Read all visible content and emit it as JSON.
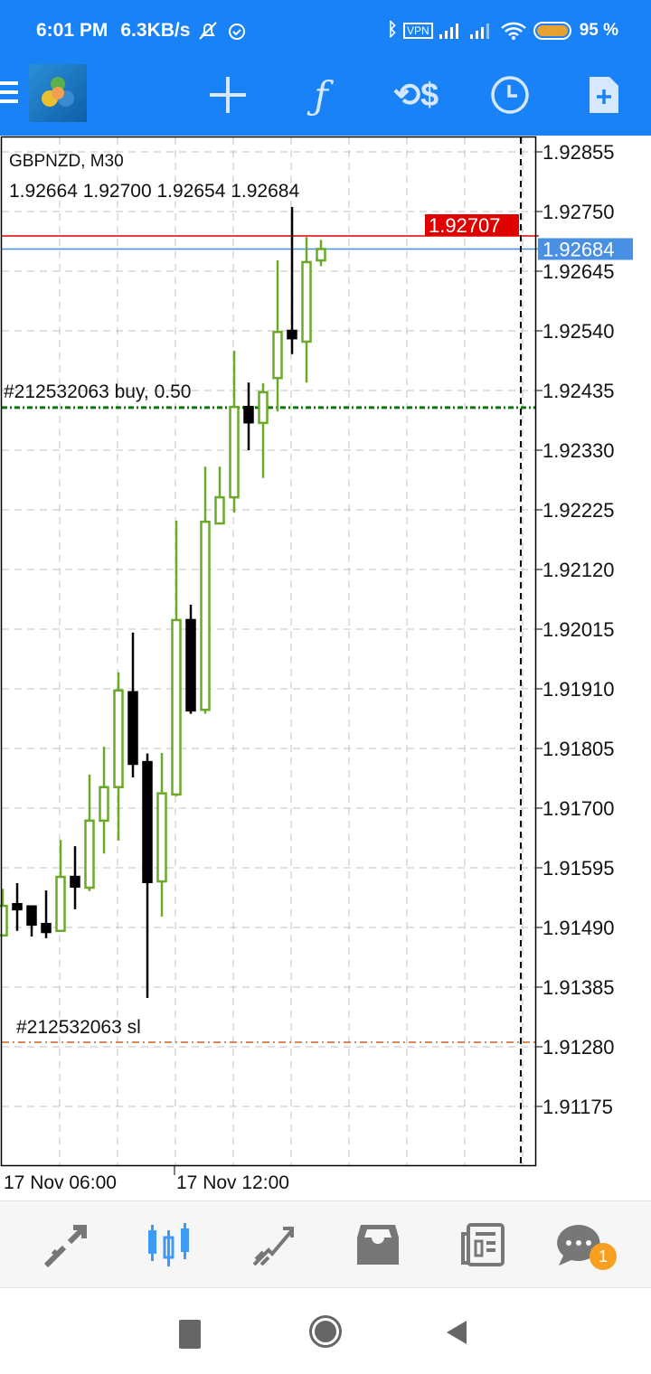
{
  "status_bar": {
    "time": "6:01 PM",
    "net_speed": "6.3KB/s",
    "battery": "95 %",
    "icons": [
      "mute-bell-icon",
      "alarm-icon",
      "bluetooth-icon",
      "vpn-icon",
      "signal-icon",
      "signal-icon",
      "wifi-icon",
      "battery-icon"
    ]
  },
  "toolbar": {
    "icons": [
      "menu-icon",
      "mt4-logo",
      "crosshair-icon",
      "indicators-icon",
      "trade-icon",
      "timeframe-icon",
      "new-order-icon"
    ]
  },
  "chart": {
    "symbol": "GBPNZD, M30",
    "ohlc_line": "1.92664 1.92700 1.92654 1.92684",
    "buy_label": "#212532063 buy, 0.50",
    "sl_label": "#212532063 sl",
    "time_labels": [
      "17 Nov 06:00",
      "17 Nov 12:00"
    ],
    "colors": {
      "bull": "#6aaa2a",
      "bear": "#000000",
      "ask": "#e00000",
      "bid": "#4a90e2",
      "buy_line": "#0a7a0a",
      "sl_line": "#d06020",
      "grid": "#c0c0c0"
    }
  },
  "chart_data": {
    "type": "candlestick",
    "title": "GBPNZD, M30",
    "y_ticks": [
      "1.92855",
      "1.92750",
      "1.92645",
      "1.92540",
      "1.92435",
      "1.92330",
      "1.92225",
      "1.92120",
      "1.92015",
      "1.91910",
      "1.91805",
      "1.91700",
      "1.91595",
      "1.91490",
      "1.91385",
      "1.91280",
      "1.91175"
    ],
    "ylim": [
      1.911,
      1.9288
    ],
    "grid": true,
    "ask": 1.92707,
    "bid": 1.92684,
    "ask_label": "1.92707",
    "bid_label": "1.92684",
    "buy_order_price": 1.92405,
    "stop_loss_price": 1.91288,
    "candles": [
      {
        "o": 1.91476,
        "h": 1.91558,
        "l": 1.91474,
        "c": 1.91528
      },
      {
        "o": 1.91531,
        "h": 1.91568,
        "l": 1.91484,
        "c": 1.91522
      },
      {
        "o": 1.91527,
        "h": 1.91527,
        "l": 1.91474,
        "c": 1.91495
      },
      {
        "o": 1.91496,
        "h": 1.91555,
        "l": 1.91471,
        "c": 1.91482
      },
      {
        "o": 1.91484,
        "h": 1.91644,
        "l": 1.91484,
        "c": 1.91579
      },
      {
        "o": 1.91579,
        "h": 1.91633,
        "l": 1.91522,
        "c": 1.91562
      },
      {
        "o": 1.9156,
        "h": 1.91759,
        "l": 1.91554,
        "c": 1.91678
      },
      {
        "o": 1.91678,
        "h": 1.91808,
        "l": 1.9162,
        "c": 1.91737
      },
      {
        "o": 1.91737,
        "h": 1.91939,
        "l": 1.91643,
        "c": 1.91907
      },
      {
        "o": 1.91904,
        "h": 1.92009,
        "l": 1.91754,
        "c": 1.91778
      },
      {
        "o": 1.91781,
        "h": 1.91796,
        "l": 1.91366,
        "c": 1.9157
      },
      {
        "o": 1.91571,
        "h": 1.91797,
        "l": 1.91509,
        "c": 1.91726
      },
      {
        "o": 1.91724,
        "h": 1.92206,
        "l": 1.91721,
        "c": 1.92031
      },
      {
        "o": 1.92031,
        "h": 1.92058,
        "l": 1.91866,
        "c": 1.91872
      },
      {
        "o": 1.91873,
        "h": 1.92301,
        "l": 1.91866,
        "c": 1.92204
      },
      {
        "o": 1.92201,
        "h": 1.92301,
        "l": 1.922,
        "c": 1.92247
      },
      {
        "o": 1.92247,
        "h": 1.92505,
        "l": 1.9222,
        "c": 1.92406
      },
      {
        "o": 1.92406,
        "h": 1.92449,
        "l": 1.9233,
        "c": 1.92379
      },
      {
        "o": 1.92378,
        "h": 1.92448,
        "l": 1.92281,
        "c": 1.92432
      },
      {
        "o": 1.92457,
        "h": 1.92664,
        "l": 1.92398,
        "c": 1.92538
      },
      {
        "o": 1.9254,
        "h": 1.92758,
        "l": 1.92499,
        "c": 1.92527
      },
      {
        "o": 1.92521,
        "h": 1.92705,
        "l": 1.92449,
        "c": 1.92661
      },
      {
        "o": 1.92664,
        "h": 1.927,
        "l": 1.92654,
        "c": 1.92684
      }
    ]
  },
  "bottom_nav": {
    "items": [
      "quotes-icon",
      "chart-icon",
      "trade-icon",
      "history-icon",
      "news-icon",
      "messages-icon"
    ],
    "active": "chart-icon",
    "messages_badge": "1"
  },
  "system_nav": [
    "recents-button",
    "home-button",
    "back-button"
  ]
}
